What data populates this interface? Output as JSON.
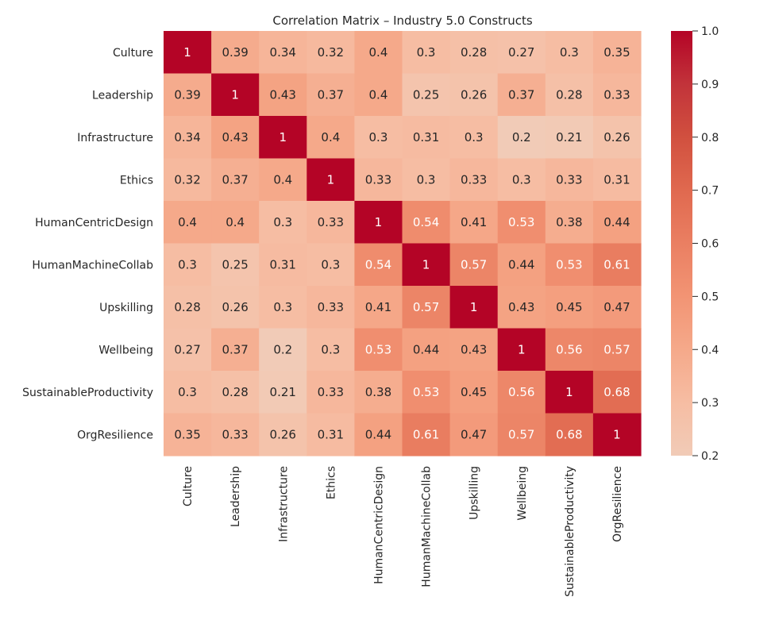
{
  "chart_data": {
    "type": "heatmap",
    "title": "Correlation Matrix – Industry 5.0 Constructs",
    "xlabel": "",
    "ylabel": "",
    "row_labels": [
      "Culture",
      "Leadership",
      "Infrastructure",
      "Ethics",
      "HumanCentricDesign",
      "HumanMachineCollab",
      "Upskilling",
      "Wellbeing",
      "SustainableProductivity",
      "OrgResilience"
    ],
    "col_labels": [
      "Culture",
      "Leadership",
      "Infrastructure",
      "Ethics",
      "HumanCentricDesign",
      "HumanMachineCollab",
      "Upskilling",
      "Wellbeing",
      "SustainableProductivity",
      "OrgResilience"
    ],
    "values": [
      [
        1,
        0.39,
        0.34,
        0.32,
        0.4,
        0.3,
        0.28,
        0.27,
        0.3,
        0.35
      ],
      [
        0.39,
        1,
        0.43,
        0.37,
        0.4,
        0.25,
        0.26,
        0.37,
        0.28,
        0.33
      ],
      [
        0.34,
        0.43,
        1,
        0.4,
        0.3,
        0.31,
        0.3,
        0.2,
        0.21,
        0.26
      ],
      [
        0.32,
        0.37,
        0.4,
        1,
        0.33,
        0.3,
        0.33,
        0.3,
        0.33,
        0.31
      ],
      [
        0.4,
        0.4,
        0.3,
        0.33,
        1,
        0.54,
        0.41,
        0.53,
        0.38,
        0.44
      ],
      [
        0.3,
        0.25,
        0.31,
        0.3,
        0.54,
        1,
        0.57,
        0.44,
        0.53,
        0.61
      ],
      [
        0.28,
        0.26,
        0.3,
        0.33,
        0.41,
        0.57,
        1,
        0.43,
        0.45,
        0.47
      ],
      [
        0.27,
        0.37,
        0.2,
        0.3,
        0.53,
        0.44,
        0.43,
        1,
        0.56,
        0.57
      ],
      [
        0.3,
        0.28,
        0.21,
        0.33,
        0.38,
        0.53,
        0.45,
        0.56,
        1,
        0.68
      ],
      [
        0.35,
        0.33,
        0.26,
        0.31,
        0.44,
        0.61,
        0.47,
        0.57,
        0.68,
        1
      ]
    ],
    "annotations": true,
    "colorbar": {
      "range": [
        0.2,
        1.0
      ],
      "ticks": [
        0.2,
        0.3,
        0.4,
        0.5,
        0.6,
        0.7,
        0.8,
        0.9,
        1.0
      ],
      "tick_labels": [
        "0.2",
        "0.3",
        "0.4",
        "0.5",
        "0.6",
        "0.7",
        "0.8",
        "0.9",
        "1.0"
      ],
      "placement": "right"
    },
    "colormap": {
      "name": "coolwarm (upper half)",
      "stops": [
        {
          "value": 0.2,
          "color": "#f1cbb7"
        },
        {
          "value": 0.3,
          "color": "#f6bda3"
        },
        {
          "value": 0.4,
          "color": "#f5a98a"
        },
        {
          "value": 0.5,
          "color": "#f29474"
        },
        {
          "value": 0.6,
          "color": "#ea7f62"
        },
        {
          "value": 0.7,
          "color": "#e0694f"
        },
        {
          "value": 0.8,
          "color": "#d1503f"
        },
        {
          "value": 0.9,
          "color": "#c2333a"
        },
        {
          "value": 1.0,
          "color": "#b40426"
        }
      ],
      "light_text_color": "#ffffff",
      "dark_text_color": "#262626",
      "light_text_threshold": 0.52
    },
    "grid": false
  }
}
